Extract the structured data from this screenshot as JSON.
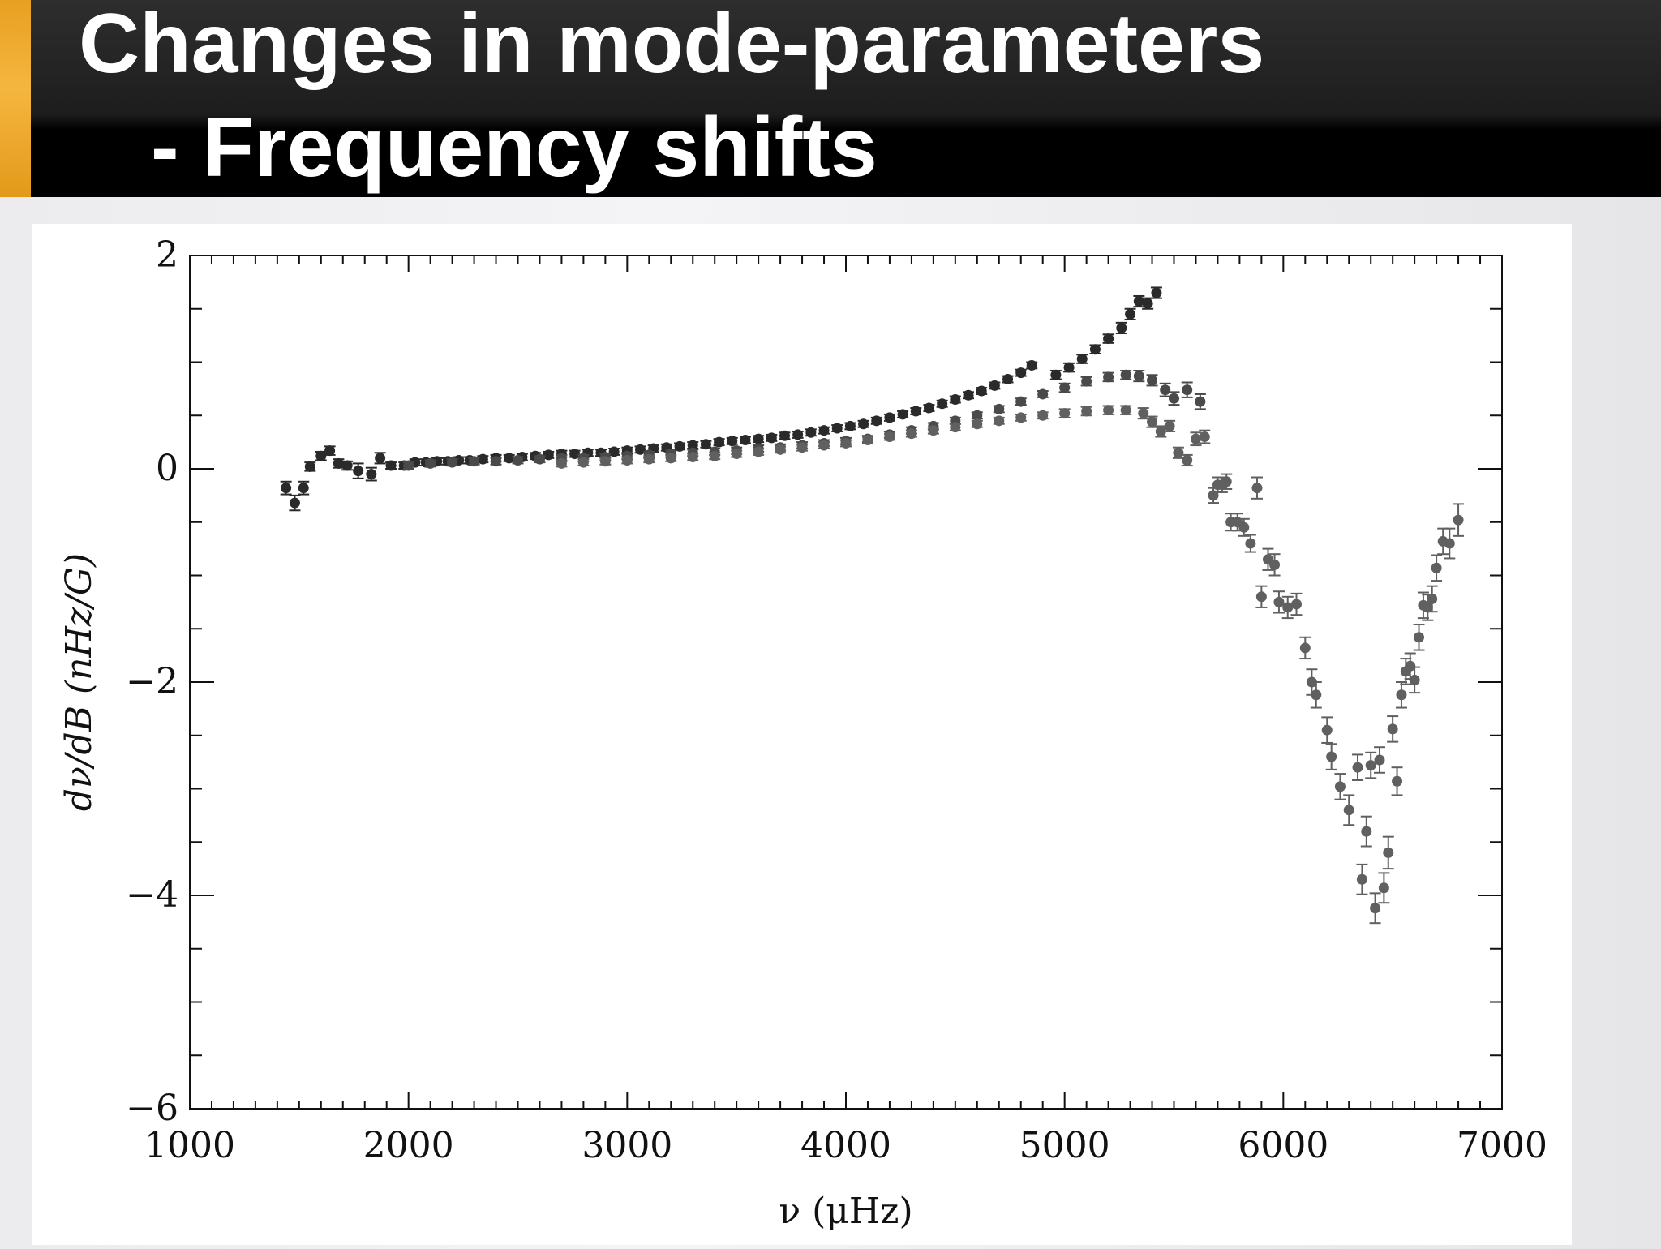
{
  "slide": {
    "title_line1": "Changes in mode-parameters",
    "title_line2": "- Frequency shifts",
    "accent_color": "#f0a82a",
    "title_bar_color": "#000000"
  },
  "chart_data": {
    "type": "scatter",
    "title": "",
    "xlabel": "ν (μHz)",
    "ylabel": "dν/dB (nHz/G)",
    "xlim": [
      1000,
      7000
    ],
    "ylim": [
      -6,
      2
    ],
    "xticks": [
      1000,
      2000,
      3000,
      4000,
      5000,
      6000,
      7000
    ],
    "xtick_labels": [
      "1000",
      "2000",
      "3000",
      "4000",
      "5000",
      "6000",
      "7000"
    ],
    "yticks": [
      2,
      0,
      -2,
      -4,
      -6
    ],
    "ytick_labels": [
      "2",
      "0",
      "−2",
      "−4",
      "−6"
    ],
    "grid": false,
    "legend": "none",
    "series": [
      {
        "color": "#2a2a2a",
        "points": [
          [
            1440,
            -0.18,
            0.06
          ],
          [
            1480,
            -0.32,
            0.07
          ],
          [
            1520,
            -0.18,
            0.06
          ],
          [
            1550,
            0.02,
            0.04
          ],
          [
            1600,
            0.12,
            0.04
          ],
          [
            1640,
            0.17,
            0.04
          ],
          [
            1680,
            0.05,
            0.04
          ],
          [
            1720,
            0.03,
            0.04
          ],
          [
            1770,
            -0.02,
            0.07
          ],
          [
            1830,
            -0.05,
            0.06
          ],
          [
            1870,
            0.1,
            0.05
          ],
          [
            1920,
            0.03,
            0.03
          ],
          [
            1980,
            0.03,
            0.03
          ],
          [
            2030,
            0.06,
            0.03
          ],
          [
            2080,
            0.06,
            0.03
          ],
          [
            2130,
            0.07,
            0.03
          ],
          [
            2180,
            0.07,
            0.03
          ],
          [
            2230,
            0.08,
            0.03
          ],
          [
            2280,
            0.08,
            0.03
          ],
          [
            2340,
            0.09,
            0.03
          ],
          [
            2400,
            0.1,
            0.03
          ],
          [
            2460,
            0.1,
            0.03
          ],
          [
            2520,
            0.11,
            0.03
          ],
          [
            2580,
            0.12,
            0.03
          ],
          [
            2640,
            0.13,
            0.03
          ],
          [
            2700,
            0.14,
            0.03
          ],
          [
            2760,
            0.14,
            0.03
          ],
          [
            2820,
            0.15,
            0.03
          ],
          [
            2880,
            0.15,
            0.03
          ],
          [
            2940,
            0.16,
            0.03
          ],
          [
            3000,
            0.17,
            0.03
          ],
          [
            3060,
            0.18,
            0.03
          ],
          [
            3120,
            0.19,
            0.03
          ],
          [
            3180,
            0.2,
            0.03
          ],
          [
            3240,
            0.21,
            0.03
          ],
          [
            3300,
            0.22,
            0.03
          ],
          [
            3360,
            0.23,
            0.03
          ],
          [
            3420,
            0.25,
            0.03
          ],
          [
            3480,
            0.26,
            0.03
          ],
          [
            3540,
            0.27,
            0.03
          ],
          [
            3600,
            0.28,
            0.03
          ],
          [
            3660,
            0.29,
            0.03
          ],
          [
            3720,
            0.31,
            0.03
          ],
          [
            3780,
            0.32,
            0.03
          ],
          [
            3840,
            0.34,
            0.03
          ],
          [
            3900,
            0.36,
            0.03
          ],
          [
            3960,
            0.38,
            0.03
          ],
          [
            4020,
            0.4,
            0.03
          ],
          [
            4080,
            0.42,
            0.03
          ],
          [
            4140,
            0.45,
            0.03
          ],
          [
            4200,
            0.48,
            0.03
          ],
          [
            4260,
            0.51,
            0.03
          ],
          [
            4320,
            0.54,
            0.03
          ],
          [
            4380,
            0.57,
            0.03
          ],
          [
            4440,
            0.61,
            0.03
          ],
          [
            4500,
            0.65,
            0.03
          ],
          [
            4560,
            0.69,
            0.03
          ],
          [
            4620,
            0.73,
            0.03
          ],
          [
            4680,
            0.78,
            0.03
          ],
          [
            4740,
            0.84,
            0.03
          ],
          [
            4800,
            0.9,
            0.03
          ],
          [
            4850,
            0.97,
            0.03
          ],
          [
            4960,
            0.88,
            0.04
          ],
          [
            5020,
            0.95,
            0.04
          ],
          [
            5080,
            1.03,
            0.04
          ],
          [
            5140,
            1.12,
            0.04
          ],
          [
            5200,
            1.22,
            0.04
          ],
          [
            5260,
            1.32,
            0.05
          ],
          [
            5300,
            1.45,
            0.05
          ],
          [
            5340,
            1.57,
            0.05
          ],
          [
            5380,
            1.55,
            0.05
          ],
          [
            5420,
            1.65,
            0.05
          ]
        ]
      },
      {
        "color": "#4a4a4a",
        "points": [
          [
            2000,
            0.03,
            0.03
          ],
          [
            2100,
            0.05,
            0.03
          ],
          [
            2200,
            0.06,
            0.03
          ],
          [
            2300,
            0.07,
            0.03
          ],
          [
            2400,
            0.07,
            0.03
          ],
          [
            2500,
            0.08,
            0.03
          ],
          [
            2600,
            0.09,
            0.03
          ],
          [
            2700,
            0.1,
            0.03
          ],
          [
            2800,
            0.1,
            0.03
          ],
          [
            2900,
            0.11,
            0.03
          ],
          [
            3000,
            0.12,
            0.03
          ],
          [
            3100,
            0.13,
            0.03
          ],
          [
            3200,
            0.14,
            0.03
          ],
          [
            3300,
            0.15,
            0.03
          ],
          [
            3400,
            0.16,
            0.03
          ],
          [
            3500,
            0.17,
            0.03
          ],
          [
            3600,
            0.19,
            0.03
          ],
          [
            3700,
            0.2,
            0.03
          ],
          [
            3800,
            0.22,
            0.03
          ],
          [
            3900,
            0.24,
            0.03
          ],
          [
            4000,
            0.26,
            0.03
          ],
          [
            4100,
            0.28,
            0.03
          ],
          [
            4200,
            0.32,
            0.03
          ],
          [
            4300,
            0.36,
            0.03
          ],
          [
            4400,
            0.4,
            0.03
          ],
          [
            4500,
            0.45,
            0.03
          ],
          [
            4600,
            0.5,
            0.03
          ],
          [
            4700,
            0.56,
            0.03
          ],
          [
            4800,
            0.63,
            0.03
          ],
          [
            4900,
            0.7,
            0.03
          ],
          [
            5000,
            0.76,
            0.04
          ],
          [
            5100,
            0.82,
            0.04
          ],
          [
            5200,
            0.86,
            0.04
          ],
          [
            5280,
            0.88,
            0.04
          ],
          [
            5340,
            0.87,
            0.05
          ],
          [
            5400,
            0.83,
            0.05
          ],
          [
            5460,
            0.74,
            0.06
          ],
          [
            5500,
            0.66,
            0.06
          ],
          [
            5560,
            0.74,
            0.07
          ],
          [
            5620,
            0.63,
            0.07
          ]
        ]
      },
      {
        "color": "#606060",
        "points": [
          [
            2700,
            0.05,
            0.03
          ],
          [
            2800,
            0.06,
            0.03
          ],
          [
            2900,
            0.07,
            0.03
          ],
          [
            3000,
            0.08,
            0.03
          ],
          [
            3100,
            0.09,
            0.03
          ],
          [
            3200,
            0.1,
            0.03
          ],
          [
            3300,
            0.11,
            0.03
          ],
          [
            3400,
            0.12,
            0.03
          ],
          [
            3500,
            0.14,
            0.03
          ],
          [
            3600,
            0.16,
            0.03
          ],
          [
            3700,
            0.18,
            0.03
          ],
          [
            3800,
            0.2,
            0.03
          ],
          [
            3900,
            0.22,
            0.03
          ],
          [
            4000,
            0.24,
            0.03
          ],
          [
            4100,
            0.27,
            0.03
          ],
          [
            4200,
            0.3,
            0.03
          ],
          [
            4300,
            0.33,
            0.03
          ],
          [
            4400,
            0.36,
            0.03
          ],
          [
            4500,
            0.39,
            0.03
          ],
          [
            4600,
            0.42,
            0.03
          ],
          [
            4700,
            0.45,
            0.03
          ],
          [
            4800,
            0.48,
            0.03
          ],
          [
            4900,
            0.5,
            0.03
          ],
          [
            5000,
            0.52,
            0.04
          ],
          [
            5100,
            0.54,
            0.04
          ],
          [
            5200,
            0.55,
            0.04
          ],
          [
            5280,
            0.55,
            0.04
          ],
          [
            5360,
            0.52,
            0.05
          ],
          [
            5400,
            0.44,
            0.05
          ],
          [
            5440,
            0.35,
            0.05
          ],
          [
            5480,
            0.4,
            0.05
          ],
          [
            5520,
            0.15,
            0.05
          ],
          [
            5560,
            0.08,
            0.05
          ],
          [
            5600,
            0.28,
            0.06
          ],
          [
            5640,
            0.3,
            0.06
          ],
          [
            5680,
            -0.25,
            0.07
          ],
          [
            5700,
            -0.15,
            0.07
          ],
          [
            5720,
            -0.15,
            0.07
          ],
          [
            5740,
            -0.12,
            0.07
          ],
          [
            5760,
            -0.5,
            0.08
          ],
          [
            5790,
            -0.5,
            0.08
          ],
          [
            5820,
            -0.55,
            0.08
          ],
          [
            5850,
            -0.7,
            0.08
          ],
          [
            5880,
            -0.18,
            0.1
          ],
          [
            5900,
            -1.2,
            0.1
          ],
          [
            5930,
            -0.85,
            0.1
          ],
          [
            5960,
            -0.9,
            0.1
          ],
          [
            5980,
            -1.25,
            0.1
          ],
          [
            6020,
            -1.3,
            0.1
          ],
          [
            6060,
            -1.27,
            0.1
          ],
          [
            6100,
            -1.68,
            0.1
          ],
          [
            6130,
            -2.0,
            0.12
          ],
          [
            6150,
            -2.12,
            0.12
          ],
          [
            6200,
            -2.45,
            0.12
          ],
          [
            6220,
            -2.7,
            0.12
          ],
          [
            6260,
            -2.98,
            0.12
          ],
          [
            6300,
            -3.2,
            0.14
          ],
          [
            6340,
            -2.8,
            0.12
          ],
          [
            6360,
            -3.85,
            0.14
          ],
          [
            6380,
            -3.4,
            0.14
          ],
          [
            6400,
            -2.78,
            0.12
          ],
          [
            6420,
            -4.12,
            0.14
          ],
          [
            6440,
            -2.73,
            0.12
          ],
          [
            6460,
            -3.93,
            0.14
          ],
          [
            6480,
            -3.6,
            0.15
          ],
          [
            6500,
            -2.44,
            0.12
          ],
          [
            6520,
            -2.93,
            0.13
          ],
          [
            6540,
            -2.12,
            0.12
          ],
          [
            6560,
            -1.9,
            0.12
          ],
          [
            6580,
            -1.85,
            0.12
          ],
          [
            6600,
            -1.98,
            0.12
          ],
          [
            6620,
            -1.58,
            0.12
          ],
          [
            6640,
            -1.28,
            0.12
          ],
          [
            6660,
            -1.3,
            0.12
          ],
          [
            6680,
            -1.22,
            0.12
          ],
          [
            6700,
            -0.93,
            0.12
          ],
          [
            6730,
            -0.68,
            0.12
          ],
          [
            6760,
            -0.7,
            0.14
          ],
          [
            6800,
            -0.48,
            0.15
          ]
        ]
      }
    ]
  }
}
